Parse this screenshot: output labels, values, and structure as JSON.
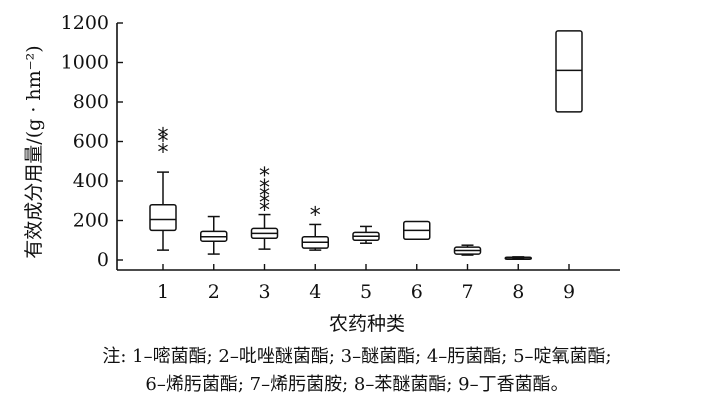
{
  "chart_data": {
    "type": "boxplot",
    "xlabel": "农药种类",
    "ylabel": "有效成分用量/(g · hm⁻²)",
    "ylim": [
      0,
      1200
    ],
    "yticks": [
      0,
      200,
      400,
      600,
      800,
      1000,
      1200
    ],
    "categories": [
      "1",
      "2",
      "3",
      "4",
      "5",
      "6",
      "7",
      "8",
      "9"
    ],
    "series": [
      {
        "category": "1",
        "min": 50,
        "q1": 150,
        "median": 205,
        "q3": 280,
        "max": 445,
        "outliers": [
          560,
          615,
          640
        ]
      },
      {
        "category": "2",
        "min": 30,
        "q1": 95,
        "median": 118,
        "q3": 145,
        "max": 220,
        "outliers": []
      },
      {
        "category": "3",
        "min": 55,
        "q1": 110,
        "median": 135,
        "q3": 160,
        "max": 230,
        "outliers": [
          265,
          305,
          340,
          380,
          440
        ]
      },
      {
        "category": "4",
        "min": 50,
        "q1": 60,
        "median": 90,
        "q3": 118,
        "max": 180,
        "outliers": [
          240
        ]
      },
      {
        "category": "5",
        "min": 85,
        "q1": 100,
        "median": 120,
        "q3": 140,
        "max": 170,
        "outliers": []
      },
      {
        "category": "6",
        "min": 105,
        "q1": 105,
        "median": 150,
        "q3": 195,
        "max": 195,
        "outliers": []
      },
      {
        "category": "7",
        "min": 25,
        "q1": 30,
        "median": 48,
        "q3": 65,
        "max": 75,
        "outliers": []
      },
      {
        "category": "8",
        "min": 8,
        "q1": 10,
        "median": 12,
        "q3": 14,
        "max": 16,
        "outliers": []
      },
      {
        "category": "9",
        "min": 750,
        "q1": 750,
        "median": 960,
        "q3": 1160,
        "max": 1160,
        "outliers": []
      }
    ],
    "outlier_marker": "*",
    "grid": false
  },
  "note": {
    "line1": "注: 1–嘧菌酯; 2–吡唑醚菌酯; 3–醚菌酯; 4–肟菌酯; 5–啶氧菌酯;",
    "line2": "6–烯肟菌酯; 7–烯肟菌胺; 8–苯醚菌酯; 9–丁香菌酯。"
  }
}
